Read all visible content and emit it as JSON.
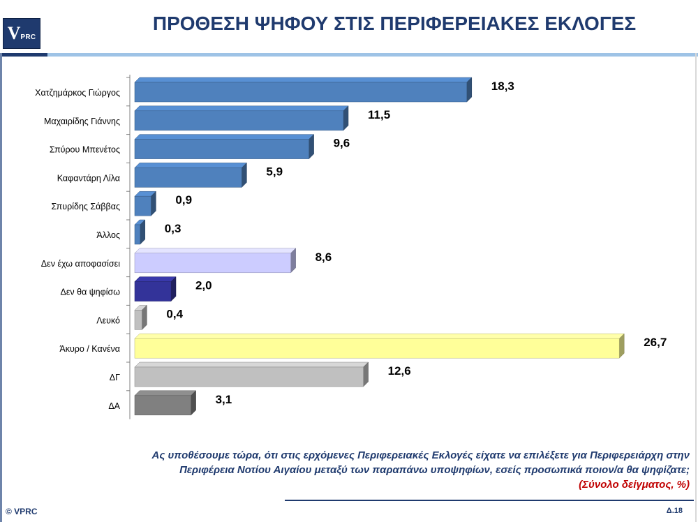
{
  "header": {
    "logo_v": "V",
    "logo_prc": "PRC",
    "title": "ΠΡΟΘΕΣΗ ΨΗΦΟΥ ΣΤΙΣ ΠΕΡΙΦΕΡΕΙΑΚΕΣ ΕΚΛΟΓΕΣ"
  },
  "chart_data": {
    "type": "bar",
    "orientation": "horizontal",
    "style": "3d",
    "categories": [
      "Χατζημάρκος Γιώργος",
      "Μαχαιρίδης Γιάννης",
      "Σπύρου Μπενέτος",
      "Καφαντάρη Λίλα",
      "Σπυρίδης Σάββας",
      "Άλλος",
      "Δεν έχω αποφασίσει",
      "Δεν θα ψηφίσω",
      "Λευκό",
      "Άκυρο / Κανένα",
      "ΔΓ",
      "ΔΑ"
    ],
    "values": [
      18.3,
      11.5,
      9.6,
      5.9,
      0.9,
      0.3,
      8.6,
      2.0,
      0.4,
      26.7,
      12.6,
      3.1
    ],
    "value_labels": [
      "18,3",
      "11,5",
      "9,6",
      "5,9",
      "0,9",
      "0,3",
      "8,6",
      "2,0",
      "0,4",
      "26,7",
      "12,6",
      "3,1"
    ],
    "colors": [
      "#4f81bd",
      "#4f81bd",
      "#4f81bd",
      "#4f81bd",
      "#4f81bd",
      "#4f81bd",
      "#ccccff",
      "#333399",
      "#c0c0c0",
      "#ffff99",
      "#c0c0c0",
      "#808080"
    ],
    "xlim": [
      0,
      27
    ],
    "grid": false,
    "legend": "none"
  },
  "footer": {
    "question_line1": "Ας υποθέσουμε τώρα, ότι στις ερχόμενες Περιφερειακές Εκλογές είχατε να επιλέξετε για Περιφερειάρχη στην",
    "question_line2": "Περιφέρεια Νοτίου Αιγαίου μεταξύ των παραπάνω υποψηφίων, εσείς προσωπικά ποιον/α θα ψηφίζατε;",
    "base_note": "(Σύνολο δείγματος, %)",
    "copyright": "© VPRC",
    "page_number": "Δ.18"
  }
}
